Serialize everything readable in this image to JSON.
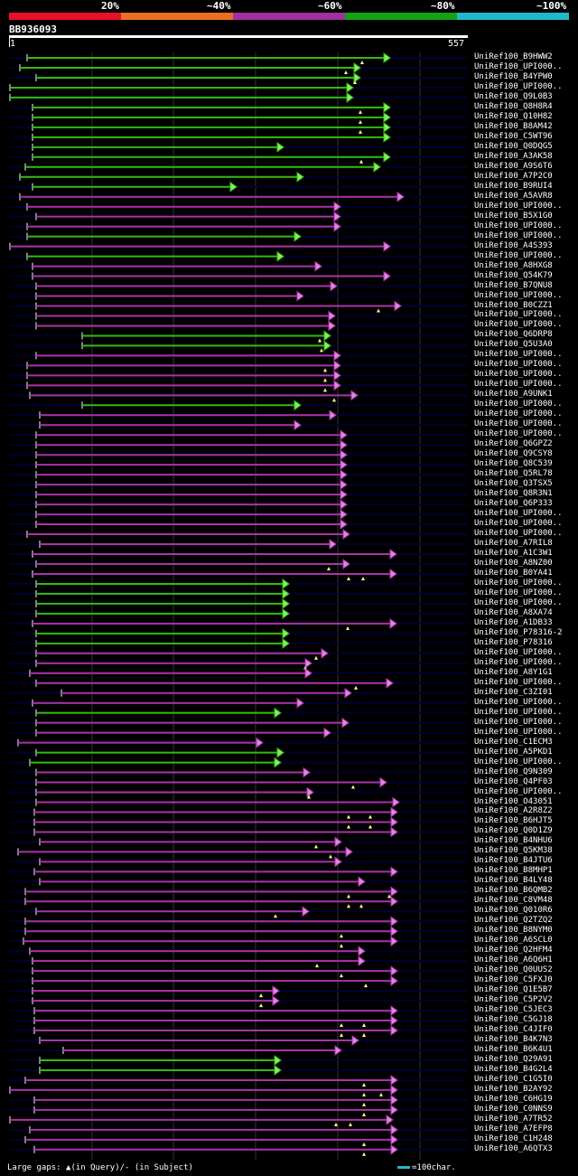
{
  "scale": {
    "labels": [
      "20%",
      "~40%",
      "~60%",
      "~80%",
      "~100%"
    ],
    "colors": [
      "#e8102a",
      "#e8701e",
      "#a0309e",
      "#16a016",
      "#22b8c8"
    ]
  },
  "query": {
    "id": "BB936093",
    "start": "1",
    "end": "557",
    "length": 557
  },
  "colors": {
    "green": "#33bb11",
    "green_head": "#88ee66",
    "magenta": "#aa33aa",
    "magenta_head": "#dd88dd",
    "bg_line": "#000033",
    "gap_marker": "#ffff88",
    "grid": "#333333"
  },
  "legend": {
    "text": "Large gaps: ▲(in Query)/- (in Subject)",
    "key": "=100char."
  },
  "hits": [
    {
      "name": "UniRef100_B9HWW2",
      "c": "g",
      "s": 30,
      "e": 432,
      "g": [
        401
      ]
    },
    {
      "name": "UniRef100_UPI000..",
      "c": "g",
      "s": 22,
      "e": 399,
      "g": [
        383
      ]
    },
    {
      "name": "UniRef100_B4YPW0",
      "c": "g",
      "s": 40,
      "e": 399,
      "g": [
        393
      ]
    },
    {
      "name": "UniRef100_UPI000..",
      "c": "g",
      "s": 11,
      "e": 391,
      "g": []
    },
    {
      "name": "UniRef100_Q9L0B3",
      "c": "g",
      "s": 11,
      "e": 391,
      "g": []
    },
    {
      "name": "UniRef100_Q8H8R4",
      "c": "g",
      "s": 36,
      "e": 432,
      "g": [
        399
      ]
    },
    {
      "name": "UniRef100_Q10H82",
      "c": "g",
      "s": 36,
      "e": 432,
      "g": [
        399
      ]
    },
    {
      "name": "UniRef100_B8AM42",
      "c": "g",
      "s": 36,
      "e": 432,
      "g": [
        399
      ]
    },
    {
      "name": "UniRef100_C5WT96",
      "c": "g",
      "s": 36,
      "e": 432,
      "g": []
    },
    {
      "name": "UniRef100_Q0DQG5",
      "c": "g",
      "s": 36,
      "e": 314,
      "g": []
    },
    {
      "name": "UniRef100_A3AK58",
      "c": "g",
      "s": 36,
      "e": 432,
      "g": [
        400
      ]
    },
    {
      "name": "UniRef100_A9S6T6",
      "c": "g",
      "s": 28,
      "e": 421,
      "g": []
    },
    {
      "name": "UniRef100_A7P2C0",
      "c": "g",
      "s": 22,
      "e": 336,
      "g": []
    },
    {
      "name": "UniRef100_B9RUI4",
      "c": "g",
      "s": 36,
      "e": 262,
      "g": []
    },
    {
      "name": "UniRef100_A5AVR8",
      "c": "m",
      "s": 22,
      "e": 447,
      "g": []
    },
    {
      "name": "UniRef100_UPI000..",
      "c": "m",
      "s": 30,
      "e": 377,
      "g": []
    },
    {
      "name": "UniRef100_B5X1G0",
      "c": "m",
      "s": 40,
      "e": 377,
      "g": []
    },
    {
      "name": "UniRef100_UPI000..",
      "c": "m",
      "s": 30,
      "e": 377,
      "g": []
    },
    {
      "name": "UniRef100_UPI000..",
      "c": "g",
      "s": 30,
      "e": 333,
      "g": []
    },
    {
      "name": "UniRef100_A4S393",
      "c": "m",
      "s": 11,
      "e": 432,
      "g": []
    },
    {
      "name": "UniRef100_UPI000..",
      "c": "g",
      "s": 30,
      "e": 314,
      "g": []
    },
    {
      "name": "UniRef100_A8HXG8",
      "c": "m",
      "s": 36,
      "e": 356,
      "g": []
    },
    {
      "name": "UniRef100_Q54K79",
      "c": "m",
      "s": 36,
      "e": 432,
      "g": []
    },
    {
      "name": "UniRef100_B7QNU8",
      "c": "m",
      "s": 40,
      "e": 373,
      "g": []
    },
    {
      "name": "UniRef100_UPI000..",
      "c": "m",
      "s": 40,
      "e": 336,
      "g": []
    },
    {
      "name": "UniRef100_B0CZZ1",
      "c": "m",
      "s": 40,
      "e": 444,
      "g": [
        419
      ]
    },
    {
      "name": "UniRef100_UPI000..",
      "c": "m",
      "s": 40,
      "e": 371,
      "g": []
    },
    {
      "name": "UniRef100_UPI000..",
      "c": "m",
      "s": 40,
      "e": 371,
      "g": []
    },
    {
      "name": "UniRef100_Q6DRP8",
      "c": "g",
      "s": 91,
      "e": 366,
      "g": [
        354
      ]
    },
    {
      "name": "UniRef100_Q5U3A0",
      "c": "g",
      "s": 91,
      "e": 366,
      "g": [
        356
      ]
    },
    {
      "name": "UniRef100_UPI000..",
      "c": "m",
      "s": 40,
      "e": 377,
      "g": []
    },
    {
      "name": "UniRef100_UPI000..",
      "c": "m",
      "s": 30,
      "e": 377,
      "g": [
        360
      ]
    },
    {
      "name": "UniRef100_UPI000..",
      "c": "m",
      "s": 30,
      "e": 377,
      "g": [
        360
      ]
    },
    {
      "name": "UniRef100_UPI000..",
      "c": "m",
      "s": 30,
      "e": 377,
      "g": [
        360
      ]
    },
    {
      "name": "UniRef100_A9UNK1",
      "c": "m",
      "s": 33,
      "e": 396,
      "g": [
        370
      ]
    },
    {
      "name": "UniRef100_UPI000..",
      "c": "g",
      "s": 91,
      "e": 333,
      "g": []
    },
    {
      "name": "UniRef100_UPI000..",
      "c": "m",
      "s": 44,
      "e": 372,
      "g": []
    },
    {
      "name": "UniRef100_UPI000..",
      "c": "m",
      "s": 44,
      "e": 333,
      "g": []
    },
    {
      "name": "UniRef100_UPI000..",
      "c": "m",
      "s": 40,
      "e": 384,
      "g": []
    },
    {
      "name": "UniRef100_Q6GPZ2",
      "c": "m",
      "s": 40,
      "e": 384,
      "g": []
    },
    {
      "name": "UniRef100_Q9CSY8",
      "c": "m",
      "s": 40,
      "e": 384,
      "g": []
    },
    {
      "name": "UniRef100_Q8C539",
      "c": "m",
      "s": 40,
      "e": 384,
      "g": []
    },
    {
      "name": "UniRef100_Q5RL78",
      "c": "m",
      "s": 40,
      "e": 384,
      "g": []
    },
    {
      "name": "UniRef100_Q3TSX5",
      "c": "m",
      "s": 40,
      "e": 384,
      "g": []
    },
    {
      "name": "UniRef100_Q8R3N1",
      "c": "m",
      "s": 40,
      "e": 384,
      "g": []
    },
    {
      "name": "UniRef100_Q6P333",
      "c": "m",
      "s": 40,
      "e": 384,
      "g": []
    },
    {
      "name": "UniRef100_UPI000..",
      "c": "m",
      "s": 40,
      "e": 384,
      "g": []
    },
    {
      "name": "UniRef100_UPI000..",
      "c": "m",
      "s": 40,
      "e": 384,
      "g": []
    },
    {
      "name": "UniRef100_UPI000..",
      "c": "m",
      "s": 30,
      "e": 387,
      "g": []
    },
    {
      "name": "UniRef100_A7RIL8",
      "c": "m",
      "s": 44,
      "e": 372,
      "g": []
    },
    {
      "name": "UniRef100_A1C3W1",
      "c": "m",
      "s": 36,
      "e": 439,
      "g": []
    },
    {
      "name": "UniRef100_A8NZ00",
      "c": "m",
      "s": 40,
      "e": 387,
      "g": [
        364
      ]
    },
    {
      "name": "UniRef100_B0YA41",
      "c": "m",
      "s": 36,
      "e": 439,
      "g": [
        386,
        402
      ]
    },
    {
      "name": "UniRef100_UPI000..",
      "c": "g",
      "s": 40,
      "e": 320,
      "g": []
    },
    {
      "name": "UniRef100_UPI000..",
      "c": "g",
      "s": 40,
      "e": 320,
      "g": []
    },
    {
      "name": "UniRef100_UPI000..",
      "c": "g",
      "s": 40,
      "e": 320,
      "g": []
    },
    {
      "name": "UniRef100_A8XA74",
      "c": "g",
      "s": 40,
      "e": 320,
      "g": []
    },
    {
      "name": "UniRef100_A1DB33",
      "c": "m",
      "s": 36,
      "e": 439,
      "g": [
        385
      ]
    },
    {
      "name": "UniRef100_P78316-2",
      "c": "g",
      "s": 40,
      "e": 320,
      "g": []
    },
    {
      "name": "UniRef100_P78316",
      "c": "g",
      "s": 40,
      "e": 320,
      "g": []
    },
    {
      "name": "UniRef100_UPI000..",
      "c": "m",
      "s": 40,
      "e": 363,
      "g": [
        350
      ]
    },
    {
      "name": "UniRef100_UPI000..",
      "c": "m",
      "s": 40,
      "e": 345,
      "g": [
        338
      ]
    },
    {
      "name": "UniRef100_A8Y1G1",
      "c": "m",
      "s": 33,
      "e": 345,
      "g": []
    },
    {
      "name": "UniRef100_UPI000..",
      "c": "m",
      "s": 40,
      "e": 435,
      "g": [
        394
      ]
    },
    {
      "name": "UniRef100_C3ZI01",
      "c": "m",
      "s": 68,
      "e": 389,
      "g": []
    },
    {
      "name": "UniRef100_UPI000..",
      "c": "m",
      "s": 36,
      "e": 336,
      "g": []
    },
    {
      "name": "UniRef100_UPI000..",
      "c": "g",
      "s": 40,
      "e": 311,
      "g": []
    },
    {
      "name": "UniRef100_UPI000..",
      "c": "m",
      "s": 40,
      "e": 386,
      "g": []
    },
    {
      "name": "UniRef100_UPI000..",
      "c": "m",
      "s": 40,
      "e": 366,
      "g": []
    },
    {
      "name": "UniRef100_C1ECM3",
      "c": "m",
      "s": 20,
      "e": 291,
      "g": []
    },
    {
      "name": "UniRef100_A5PKD1",
      "c": "g",
      "s": 40,
      "e": 314,
      "g": []
    },
    {
      "name": "UniRef100_UPI000..",
      "c": "g",
      "s": 33,
      "e": 311,
      "g": []
    },
    {
      "name": "UniRef100_Q9N309",
      "c": "m",
      "s": 40,
      "e": 343,
      "g": []
    },
    {
      "name": "UniRef100_Q4PF03",
      "c": "m",
      "s": 40,
      "e": 428,
      "g": [
        391
      ]
    },
    {
      "name": "UniRef100_UPI000..",
      "c": "m",
      "s": 40,
      "e": 347,
      "g": [
        342
      ]
    },
    {
      "name": "UniRef100_O43051",
      "c": "m",
      "s": 40,
      "e": 442,
      "g": []
    },
    {
      "name": "UniRef100_A2R8Z2",
      "c": "m",
      "s": 38,
      "e": 440,
      "g": [
        386,
        410
      ]
    },
    {
      "name": "UniRef100_B6HJT5",
      "c": "m",
      "s": 38,
      "e": 440,
      "g": [
        386,
        410
      ]
    },
    {
      "name": "UniRef100_Q0D1Z9",
      "c": "m",
      "s": 38,
      "e": 440,
      "g": []
    },
    {
      "name": "UniRef100_B4NHU6",
      "c": "m",
      "s": 44,
      "e": 378,
      "g": [
        350
      ]
    },
    {
      "name": "UniRef100_Q5KM38",
      "c": "m",
      "s": 20,
      "e": 390,
      "g": [
        366
      ]
    },
    {
      "name": "UniRef100_B4JTU6",
      "c": "m",
      "s": 44,
      "e": 378,
      "g": []
    },
    {
      "name": "UniRef100_B8MHP1",
      "c": "m",
      "s": 38,
      "e": 440,
      "g": []
    },
    {
      "name": "UniRef100_B4LY48",
      "c": "m",
      "s": 44,
      "e": 404,
      "g": []
    },
    {
      "name": "UniRef100_B6QMB2",
      "c": "m",
      "s": 28,
      "e": 440,
      "g": [
        386,
        431
      ]
    },
    {
      "name": "UniRef100_C8VM48",
      "c": "m",
      "s": 28,
      "e": 440,
      "g": [
        386,
        400
      ]
    },
    {
      "name": "UniRef100_Q010R6",
      "c": "m",
      "s": 40,
      "e": 342,
      "g": [
        305
      ]
    },
    {
      "name": "UniRef100_Q2TZQ2",
      "c": "m",
      "s": 28,
      "e": 440,
      "g": []
    },
    {
      "name": "UniRef100_B8NYM0",
      "c": "m",
      "s": 28,
      "e": 440,
      "g": [
        378
      ]
    },
    {
      "name": "UniRef100_A6SCL0",
      "c": "m",
      "s": 26,
      "e": 440,
      "g": [
        378
      ]
    },
    {
      "name": "UniRef100_Q2HFM4",
      "c": "m",
      "s": 33,
      "e": 404,
      "g": []
    },
    {
      "name": "UniRef100_A6Q6H1",
      "c": "m",
      "s": 36,
      "e": 404,
      "g": [
        351
      ]
    },
    {
      "name": "UniRef100_Q0UUS2",
      "c": "m",
      "s": 36,
      "e": 440,
      "g": [
        378
      ]
    },
    {
      "name": "UniRef100_C5FXJ0",
      "c": "m",
      "s": 36,
      "e": 440,
      "g": [
        405
      ]
    },
    {
      "name": "UniRef100_Q1E5B7",
      "c": "m",
      "s": 36,
      "e": 309,
      "g": [
        289
      ]
    },
    {
      "name": "UniRef100_C5P2V2",
      "c": "m",
      "s": 36,
      "e": 309,
      "g": [
        289
      ]
    },
    {
      "name": "UniRef100_C5JEC3",
      "c": "m",
      "s": 38,
      "e": 440,
      "g": []
    },
    {
      "name": "UniRef100_C5GJ18",
      "c": "m",
      "s": 38,
      "e": 440,
      "g": [
        378,
        403
      ]
    },
    {
      "name": "UniRef100_C4JIF0",
      "c": "m",
      "s": 38,
      "e": 440,
      "g": [
        378,
        403
      ]
    },
    {
      "name": "UniRef100_B4K7N3",
      "c": "m",
      "s": 44,
      "e": 397,
      "g": []
    },
    {
      "name": "UniRef100_B6K4U1",
      "c": "m",
      "s": 70,
      "e": 378,
      "g": []
    },
    {
      "name": "UniRef100_Q29A91",
      "c": "g",
      "s": 44,
      "e": 311,
      "g": []
    },
    {
      "name": "UniRef100_B4G2L4",
      "c": "g",
      "s": 44,
      "e": 311,
      "g": []
    },
    {
      "name": "UniRef100_C1G5I0",
      "c": "m",
      "s": 28,
      "e": 440,
      "g": [
        403
      ]
    },
    {
      "name": "UniRef100_B2AY92",
      "c": "m",
      "s": 11,
      "e": 440,
      "g": [
        403,
        422
      ]
    },
    {
      "name": "UniRef100_C6HG19",
      "c": "m",
      "s": 38,
      "e": 440,
      "g": [
        403
      ]
    },
    {
      "name": "UniRef100_C0NNS9",
      "c": "m",
      "s": 38,
      "e": 440,
      "g": [
        403
      ]
    },
    {
      "name": "UniRef100_A7TR52",
      "c": "m",
      "s": 11,
      "e": 435,
      "g": [
        372,
        388
      ]
    },
    {
      "name": "UniRef100_A7EFP8",
      "c": "m",
      "s": 33,
      "e": 440,
      "g": []
    },
    {
      "name": "UniRef100_C1H248",
      "c": "m",
      "s": 28,
      "e": 440,
      "g": [
        403
      ]
    },
    {
      "name": "UniRef100_A6QTX3",
      "c": "m",
      "s": 38,
      "e": 440,
      "g": [
        403
      ]
    }
  ]
}
